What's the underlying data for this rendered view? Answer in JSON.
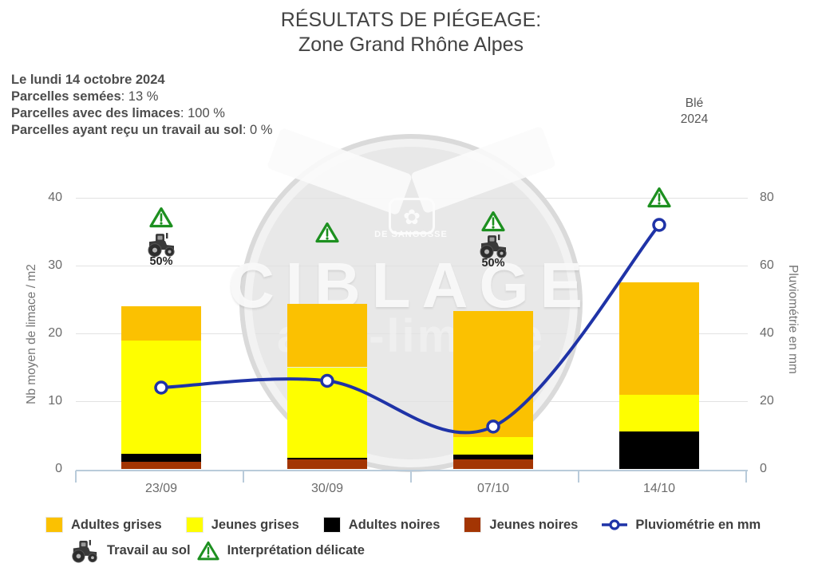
{
  "title": {
    "line1": "RÉSULTATS DE PIÉGEAGE:",
    "line2": "Zone Grand Rhône Alpes"
  },
  "info": {
    "date": "Le lundi 14 octobre 2024",
    "sep": ": ",
    "rows": [
      {
        "label": "Parcelles semées",
        "value": "13 %"
      },
      {
        "label": "Parcelles avec des limaces",
        "value": "100 %"
      },
      {
        "label": "Parcelles ayant reçu un travail au sol",
        "value": "0 %"
      }
    ]
  },
  "crop_label": {
    "line1": "Blé",
    "line2": "2024"
  },
  "watermark": {
    "brand": "CIBLAGE",
    "sub": "anti-limace",
    "company": "DE SANGOSSE",
    "emblem": "✿"
  },
  "chart_data": {
    "type": "bar+line",
    "categories": [
      "23/09",
      "30/09",
      "07/10",
      "14/10"
    ],
    "series": [
      {
        "name": "Adultes grises",
        "color": "#FBC101",
        "values": [
          5.0,
          9.3,
          18.6,
          16.5
        ]
      },
      {
        "name": "Jeunes grises",
        "color": "#FEFE00",
        "values": [
          16.8,
          13.3,
          2.6,
          5.5
        ]
      },
      {
        "name": "Adultes noires",
        "color": "#000000",
        "values": [
          1.1,
          0.3,
          0.7,
          5.5
        ]
      },
      {
        "name": "Jeunes noires",
        "color": "#A33503",
        "values": [
          1.1,
          1.4,
          1.4,
          0
        ]
      }
    ],
    "stack_order_bottom_to_top": [
      "Jeunes noires",
      "Adultes noires",
      "Jeunes grises",
      "Adultes grises"
    ],
    "line_series": {
      "name": "Pluviométrie en mm",
      "color": "#1F33A7",
      "values": [
        24,
        26,
        12.5,
        72
      ],
      "axis": "right"
    },
    "ylabel_left": "Nb moyen de limace / m2",
    "ylabel_right": "Pluviométrie en mm",
    "ylim_left": [
      0,
      40
    ],
    "yticks_left": [
      0,
      10,
      20,
      30,
      40
    ],
    "ylim_right": [
      0,
      80
    ],
    "yticks_right": [
      0,
      20,
      40,
      60,
      80
    ],
    "grid": true,
    "annotations": {
      "warnings": [
        {
          "category": "23/09",
          "y": 37.2
        },
        {
          "category": "30/09",
          "y": 35.0
        },
        {
          "category": "07/10",
          "y": 36.6
        },
        {
          "category": "14/10",
          "y": 40.1
        }
      ],
      "tractors": [
        {
          "category": "23/09",
          "y": 33.3,
          "label": "50%"
        },
        {
          "category": "07/10",
          "y": 33.1,
          "label": "50%"
        }
      ]
    }
  },
  "legend": {
    "row1": [
      {
        "type": "swatch",
        "color": "#FBC101",
        "label": "Adultes grises"
      },
      {
        "type": "swatch",
        "color": "#FEFE00",
        "label": "Jeunes grises"
      },
      {
        "type": "swatch",
        "color": "#000000",
        "label": "Adultes noires"
      },
      {
        "type": "swatch",
        "color": "#A33503",
        "label": "Jeunes noires"
      },
      {
        "type": "line-marker",
        "color": "#1F33A7",
        "label": "Pluviométrie en mm"
      }
    ],
    "row2": [
      {
        "type": "tractor",
        "label": "Travail au sol"
      },
      {
        "type": "warning",
        "label": "Interprétation délicate"
      }
    ]
  }
}
